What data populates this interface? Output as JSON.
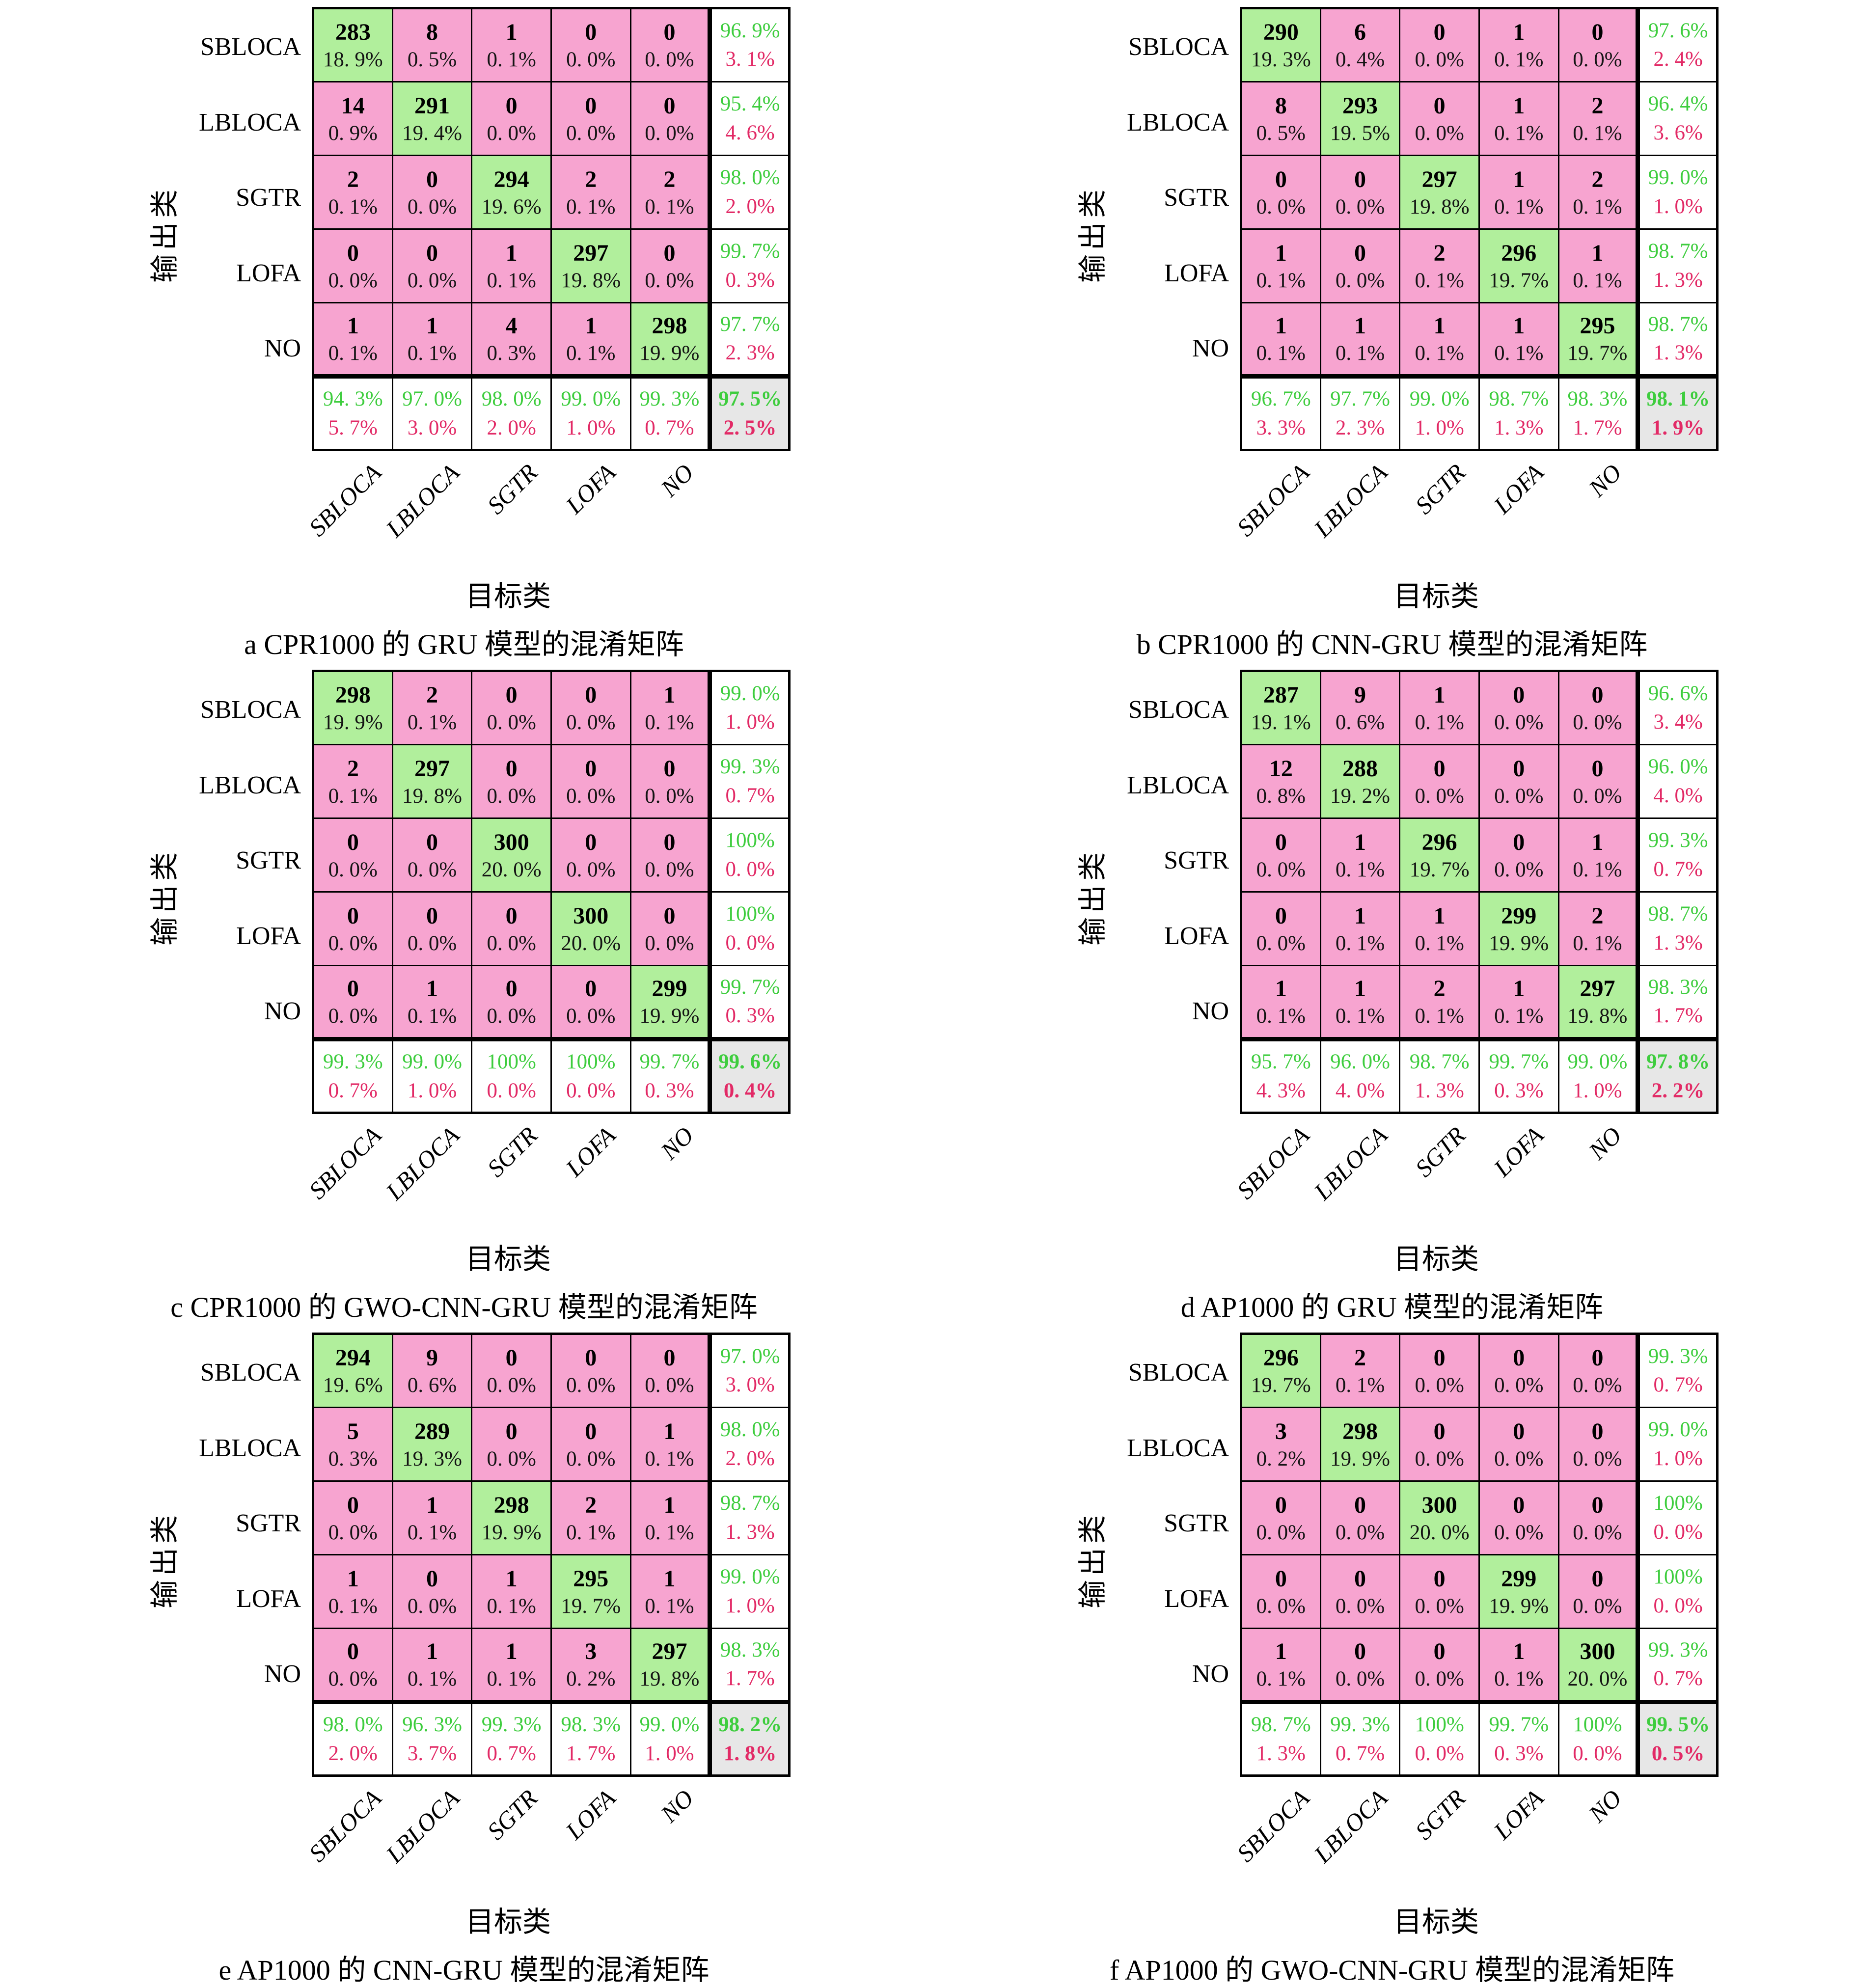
{
  "colors": {
    "diagonal_cell": "#b1ef9c",
    "off_diagonal_cell": "#f7a4d0",
    "summary_green_text": "#3ecd3e",
    "summary_red_text": "#e22a66",
    "overall_cell_bg": "#e7e7e7",
    "grid_line": "#000000"
  },
  "chart_data": [
    {
      "type": "heatmap",
      "id": "a",
      "title": "a CPR1000 的 GRU 模型的混淆矩阵",
      "xlabel": "目标类",
      "ylabel": "输出类",
      "classes": [
        "SBLOCA",
        "LBLOCA",
        "SGTR",
        "LOFA",
        "NO"
      ],
      "cells": [
        [
          {
            "count": "283",
            "pct": "18. 9%"
          },
          {
            "count": "8",
            "pct": "0. 5%"
          },
          {
            "count": "1",
            "pct": "0. 1%"
          },
          {
            "count": "0",
            "pct": "0. 0%"
          },
          {
            "count": "0",
            "pct": "0. 0%"
          }
        ],
        [
          {
            "count": "14",
            "pct": "0. 9%"
          },
          {
            "count": "291",
            "pct": "19. 4%"
          },
          {
            "count": "0",
            "pct": "0. 0%"
          },
          {
            "count": "0",
            "pct": "0. 0%"
          },
          {
            "count": "0",
            "pct": "0. 0%"
          }
        ],
        [
          {
            "count": "2",
            "pct": "0. 1%"
          },
          {
            "count": "0",
            "pct": "0. 0%"
          },
          {
            "count": "294",
            "pct": "19. 6%"
          },
          {
            "count": "2",
            "pct": "0. 1%"
          },
          {
            "count": "2",
            "pct": "0. 1%"
          }
        ],
        [
          {
            "count": "0",
            "pct": "0. 0%"
          },
          {
            "count": "0",
            "pct": "0. 0%"
          },
          {
            "count": "1",
            "pct": "0. 1%"
          },
          {
            "count": "297",
            "pct": "19. 8%"
          },
          {
            "count": "0",
            "pct": "0. 0%"
          }
        ],
        [
          {
            "count": "1",
            "pct": "0. 1%"
          },
          {
            "count": "1",
            "pct": "0. 1%"
          },
          {
            "count": "4",
            "pct": "0. 3%"
          },
          {
            "count": "1",
            "pct": "0. 1%"
          },
          {
            "count": "298",
            "pct": "19. 9%"
          }
        ]
      ],
      "row_summary": [
        {
          "green": "96. 9%",
          "red": "3. 1%"
        },
        {
          "green": "95. 4%",
          "red": "4. 6%"
        },
        {
          "green": "98. 0%",
          "red": "2. 0%"
        },
        {
          "green": "99. 7%",
          "red": "0. 3%"
        },
        {
          "green": "97. 7%",
          "red": "2. 3%"
        }
      ],
      "col_summary": [
        {
          "green": "94. 3%",
          "red": "5. 7%"
        },
        {
          "green": "97. 0%",
          "red": "3. 0%"
        },
        {
          "green": "98. 0%",
          "red": "2. 0%"
        },
        {
          "green": "99. 0%",
          "red": "1. 0%"
        },
        {
          "green": "99. 3%",
          "red": "0. 7%"
        }
      ],
      "overall": {
        "green": "97. 5%",
        "red": "2. 5%"
      }
    },
    {
      "type": "heatmap",
      "id": "b",
      "title": "b CPR1000 的 CNN-GRU 模型的混淆矩阵",
      "xlabel": "目标类",
      "ylabel": "输出类",
      "classes": [
        "SBLOCA",
        "LBLOCA",
        "SGTR",
        "LOFA",
        "NO"
      ],
      "cells": [
        [
          {
            "count": "290",
            "pct": "19. 3%"
          },
          {
            "count": "6",
            "pct": "0. 4%"
          },
          {
            "count": "0",
            "pct": "0. 0%"
          },
          {
            "count": "1",
            "pct": "0. 1%"
          },
          {
            "count": "0",
            "pct": "0. 0%"
          }
        ],
        [
          {
            "count": "8",
            "pct": "0. 5%"
          },
          {
            "count": "293",
            "pct": "19. 5%"
          },
          {
            "count": "0",
            "pct": "0. 0%"
          },
          {
            "count": "1",
            "pct": "0. 1%"
          },
          {
            "count": "2",
            "pct": "0. 1%"
          }
        ],
        [
          {
            "count": "0",
            "pct": "0. 0%"
          },
          {
            "count": "0",
            "pct": "0. 0%"
          },
          {
            "count": "297",
            "pct": "19. 8%"
          },
          {
            "count": "1",
            "pct": "0. 1%"
          },
          {
            "count": "2",
            "pct": "0. 1%"
          }
        ],
        [
          {
            "count": "1",
            "pct": "0. 1%"
          },
          {
            "count": "0",
            "pct": "0. 0%"
          },
          {
            "count": "2",
            "pct": "0. 1%"
          },
          {
            "count": "296",
            "pct": "19. 7%"
          },
          {
            "count": "1",
            "pct": "0. 1%"
          }
        ],
        [
          {
            "count": "1",
            "pct": "0. 1%"
          },
          {
            "count": "1",
            "pct": "0. 1%"
          },
          {
            "count": "1",
            "pct": "0. 1%"
          },
          {
            "count": "1",
            "pct": "0. 1%"
          },
          {
            "count": "295",
            "pct": "19. 7%"
          }
        ]
      ],
      "row_summary": [
        {
          "green": "97. 6%",
          "red": "2. 4%"
        },
        {
          "green": "96. 4%",
          "red": "3. 6%"
        },
        {
          "green": "99. 0%",
          "red": "1. 0%"
        },
        {
          "green": "98. 7%",
          "red": "1. 3%"
        },
        {
          "green": "98. 7%",
          "red": "1. 3%"
        }
      ],
      "col_summary": [
        {
          "green": "96. 7%",
          "red": "3. 3%"
        },
        {
          "green": "97. 7%",
          "red": "2. 3%"
        },
        {
          "green": "99. 0%",
          "red": "1. 0%"
        },
        {
          "green": "98. 7%",
          "red": "1. 3%"
        },
        {
          "green": "98. 3%",
          "red": "1. 7%"
        }
      ],
      "overall": {
        "green": "98. 1%",
        "red": "1. 9%"
      }
    },
    {
      "type": "heatmap",
      "id": "c",
      "title": "c CPR1000 的 GWO-CNN-GRU 模型的混淆矩阵",
      "xlabel": "目标类",
      "ylabel": "输出类",
      "classes": [
        "SBLOCA",
        "LBLOCA",
        "SGTR",
        "LOFA",
        "NO"
      ],
      "cells": [
        [
          {
            "count": "298",
            "pct": "19. 9%"
          },
          {
            "count": "2",
            "pct": "0. 1%"
          },
          {
            "count": "0",
            "pct": "0. 0%"
          },
          {
            "count": "0",
            "pct": "0. 0%"
          },
          {
            "count": "1",
            "pct": "0. 1%"
          }
        ],
        [
          {
            "count": "2",
            "pct": "0. 1%"
          },
          {
            "count": "297",
            "pct": "19. 8%"
          },
          {
            "count": "0",
            "pct": "0. 0%"
          },
          {
            "count": "0",
            "pct": "0. 0%"
          },
          {
            "count": "0",
            "pct": "0. 0%"
          }
        ],
        [
          {
            "count": "0",
            "pct": "0. 0%"
          },
          {
            "count": "0",
            "pct": "0. 0%"
          },
          {
            "count": "300",
            "pct": "20. 0%"
          },
          {
            "count": "0",
            "pct": "0. 0%"
          },
          {
            "count": "0",
            "pct": "0. 0%"
          }
        ],
        [
          {
            "count": "0",
            "pct": "0. 0%"
          },
          {
            "count": "0",
            "pct": "0. 0%"
          },
          {
            "count": "0",
            "pct": "0. 0%"
          },
          {
            "count": "300",
            "pct": "20. 0%"
          },
          {
            "count": "0",
            "pct": "0. 0%"
          }
        ],
        [
          {
            "count": "0",
            "pct": "0. 0%"
          },
          {
            "count": "1",
            "pct": "0. 1%"
          },
          {
            "count": "0",
            "pct": "0. 0%"
          },
          {
            "count": "0",
            "pct": "0. 0%"
          },
          {
            "count": "299",
            "pct": "19. 9%"
          }
        ]
      ],
      "row_summary": [
        {
          "green": "99. 0%",
          "red": "1. 0%"
        },
        {
          "green": "99. 3%",
          "red": "0. 7%"
        },
        {
          "green": "100%",
          "red": "0. 0%"
        },
        {
          "green": "100%",
          "red": "0. 0%"
        },
        {
          "green": "99. 7%",
          "red": "0. 3%"
        }
      ],
      "col_summary": [
        {
          "green": "99. 3%",
          "red": "0. 7%"
        },
        {
          "green": "99. 0%",
          "red": "1. 0%"
        },
        {
          "green": "100%",
          "red": "0. 0%"
        },
        {
          "green": "100%",
          "red": "0. 0%"
        },
        {
          "green": "99. 7%",
          "red": "0. 3%"
        }
      ],
      "overall": {
        "green": "99. 6%",
        "red": "0. 4%"
      }
    },
    {
      "type": "heatmap",
      "id": "d",
      "title": "d AP1000 的 GRU 模型的混淆矩阵",
      "xlabel": "目标类",
      "ylabel": "输出类",
      "classes": [
        "SBLOCA",
        "LBLOCA",
        "SGTR",
        "LOFA",
        "NO"
      ],
      "cells": [
        [
          {
            "count": "287",
            "pct": "19. 1%"
          },
          {
            "count": "9",
            "pct": "0. 6%"
          },
          {
            "count": "1",
            "pct": "0. 1%"
          },
          {
            "count": "0",
            "pct": "0. 0%"
          },
          {
            "count": "0",
            "pct": "0. 0%"
          }
        ],
        [
          {
            "count": "12",
            "pct": "0. 8%"
          },
          {
            "count": "288",
            "pct": "19. 2%"
          },
          {
            "count": "0",
            "pct": "0. 0%"
          },
          {
            "count": "0",
            "pct": "0. 0%"
          },
          {
            "count": "0",
            "pct": "0. 0%"
          }
        ],
        [
          {
            "count": "0",
            "pct": "0. 0%"
          },
          {
            "count": "1",
            "pct": "0. 1%"
          },
          {
            "count": "296",
            "pct": "19. 7%"
          },
          {
            "count": "0",
            "pct": "0. 0%"
          },
          {
            "count": "1",
            "pct": "0. 1%"
          }
        ],
        [
          {
            "count": "0",
            "pct": "0. 0%"
          },
          {
            "count": "1",
            "pct": "0. 1%"
          },
          {
            "count": "1",
            "pct": "0. 1%"
          },
          {
            "count": "299",
            "pct": "19. 9%"
          },
          {
            "count": "2",
            "pct": "0. 1%"
          }
        ],
        [
          {
            "count": "1",
            "pct": "0. 1%"
          },
          {
            "count": "1",
            "pct": "0. 1%"
          },
          {
            "count": "2",
            "pct": "0. 1%"
          },
          {
            "count": "1",
            "pct": "0. 1%"
          },
          {
            "count": "297",
            "pct": "19. 8%"
          }
        ]
      ],
      "row_summary": [
        {
          "green": "96. 6%",
          "red": "3. 4%"
        },
        {
          "green": "96. 0%",
          "red": "4. 0%"
        },
        {
          "green": "99. 3%",
          "red": "0. 7%"
        },
        {
          "green": "98. 7%",
          "red": "1. 3%"
        },
        {
          "green": "98. 3%",
          "red": "1. 7%"
        }
      ],
      "col_summary": [
        {
          "green": "95. 7%",
          "red": "4. 3%"
        },
        {
          "green": "96. 0%",
          "red": "4. 0%"
        },
        {
          "green": "98. 7%",
          "red": "1. 3%"
        },
        {
          "green": "99. 7%",
          "red": "0. 3%"
        },
        {
          "green": "99. 0%",
          "red": "1. 0%"
        }
      ],
      "overall": {
        "green": "97. 8%",
        "red": "2. 2%"
      }
    },
    {
      "type": "heatmap",
      "id": "e",
      "title": "e AP1000 的 CNN-GRU 模型的混淆矩阵",
      "xlabel": "目标类",
      "ylabel": "输出类",
      "classes": [
        "SBLOCA",
        "LBLOCA",
        "SGTR",
        "LOFA",
        "NO"
      ],
      "cells": [
        [
          {
            "count": "294",
            "pct": "19. 6%"
          },
          {
            "count": "9",
            "pct": "0. 6%"
          },
          {
            "count": "0",
            "pct": "0. 0%"
          },
          {
            "count": "0",
            "pct": "0. 0%"
          },
          {
            "count": "0",
            "pct": "0. 0%"
          }
        ],
        [
          {
            "count": "5",
            "pct": "0. 3%"
          },
          {
            "count": "289",
            "pct": "19. 3%"
          },
          {
            "count": "0",
            "pct": "0. 0%"
          },
          {
            "count": "0",
            "pct": "0. 0%"
          },
          {
            "count": "1",
            "pct": "0. 1%"
          }
        ],
        [
          {
            "count": "0",
            "pct": "0. 0%"
          },
          {
            "count": "1",
            "pct": "0. 1%"
          },
          {
            "count": "298",
            "pct": "19. 9%"
          },
          {
            "count": "2",
            "pct": "0. 1%"
          },
          {
            "count": "1",
            "pct": "0. 1%"
          }
        ],
        [
          {
            "count": "1",
            "pct": "0. 1%"
          },
          {
            "count": "0",
            "pct": "0. 0%"
          },
          {
            "count": "1",
            "pct": "0. 1%"
          },
          {
            "count": "295",
            "pct": "19. 7%"
          },
          {
            "count": "1",
            "pct": "0. 1%"
          }
        ],
        [
          {
            "count": "0",
            "pct": "0. 0%"
          },
          {
            "count": "1",
            "pct": "0. 1%"
          },
          {
            "count": "1",
            "pct": "0. 1%"
          },
          {
            "count": "3",
            "pct": "0. 2%"
          },
          {
            "count": "297",
            "pct": "19. 8%"
          }
        ]
      ],
      "row_summary": [
        {
          "green": "97. 0%",
          "red": "3. 0%"
        },
        {
          "green": "98. 0%",
          "red": "2. 0%"
        },
        {
          "green": "98. 7%",
          "red": "1. 3%"
        },
        {
          "green": "99. 0%",
          "red": "1. 0%"
        },
        {
          "green": "98. 3%",
          "red": "1. 7%"
        }
      ],
      "col_summary": [
        {
          "green": "98. 0%",
          "red": "2. 0%"
        },
        {
          "green": "96. 3%",
          "red": "3. 7%"
        },
        {
          "green": "99. 3%",
          "red": "0. 7%"
        },
        {
          "green": "98. 3%",
          "red": "1. 7%"
        },
        {
          "green": "99. 0%",
          "red": "1. 0%"
        }
      ],
      "overall": {
        "green": "98. 2%",
        "red": "1. 8%"
      }
    },
    {
      "type": "heatmap",
      "id": "f",
      "title": "f AP1000 的 GWO-CNN-GRU 模型的混淆矩阵",
      "xlabel": "目标类",
      "ylabel": "输出类",
      "classes": [
        "SBLOCA",
        "LBLOCA",
        "SGTR",
        "LOFA",
        "NO"
      ],
      "cells": [
        [
          {
            "count": "296",
            "pct": "19. 7%"
          },
          {
            "count": "2",
            "pct": "0. 1%"
          },
          {
            "count": "0",
            "pct": "0. 0%"
          },
          {
            "count": "0",
            "pct": "0. 0%"
          },
          {
            "count": "0",
            "pct": "0. 0%"
          }
        ],
        [
          {
            "count": "3",
            "pct": "0. 2%"
          },
          {
            "count": "298",
            "pct": "19. 9%"
          },
          {
            "count": "0",
            "pct": "0. 0%"
          },
          {
            "count": "0",
            "pct": "0. 0%"
          },
          {
            "count": "0",
            "pct": "0. 0%"
          }
        ],
        [
          {
            "count": "0",
            "pct": "0. 0%"
          },
          {
            "count": "0",
            "pct": "0. 0%"
          },
          {
            "count": "300",
            "pct": "20. 0%"
          },
          {
            "count": "0",
            "pct": "0. 0%"
          },
          {
            "count": "0",
            "pct": "0. 0%"
          }
        ],
        [
          {
            "count": "0",
            "pct": "0. 0%"
          },
          {
            "count": "0",
            "pct": "0. 0%"
          },
          {
            "count": "0",
            "pct": "0. 0%"
          },
          {
            "count": "299",
            "pct": "19. 9%"
          },
          {
            "count": "0",
            "pct": "0. 0%"
          }
        ],
        [
          {
            "count": "1",
            "pct": "0. 1%"
          },
          {
            "count": "0",
            "pct": "0. 0%"
          },
          {
            "count": "0",
            "pct": "0. 0%"
          },
          {
            "count": "1",
            "pct": "0. 1%"
          },
          {
            "count": "300",
            "pct": "20. 0%"
          }
        ]
      ],
      "row_summary": [
        {
          "green": "99. 3%",
          "red": "0. 7%"
        },
        {
          "green": "99. 0%",
          "red": "1. 0%"
        },
        {
          "green": "100%",
          "red": "0. 0%"
        },
        {
          "green": "100%",
          "red": "0. 0%"
        },
        {
          "green": "99. 3%",
          "red": "0. 7%"
        }
      ],
      "col_summary": [
        {
          "green": "98. 7%",
          "red": "1. 3%"
        },
        {
          "green": "99. 3%",
          "red": "0. 7%"
        },
        {
          "green": "100%",
          "red": "0. 0%"
        },
        {
          "green": "99. 7%",
          "red": "0. 3%"
        },
        {
          "green": "100%",
          "red": "0. 0%"
        }
      ],
      "overall": {
        "green": "99. 5%",
        "red": "0. 5%"
      }
    }
  ]
}
